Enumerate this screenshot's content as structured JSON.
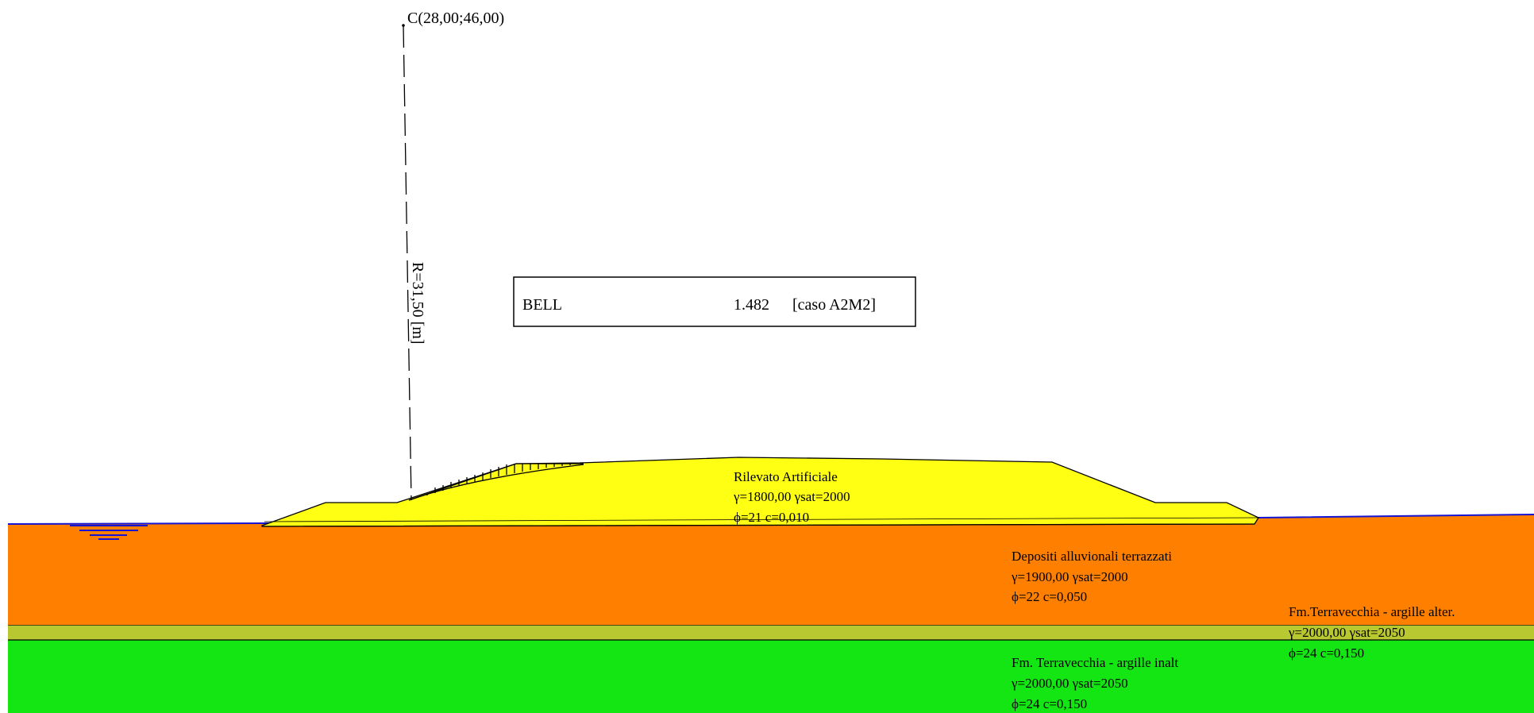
{
  "center_label": "C(28,00;46,00)",
  "radius_label": "R=31,50 [m]",
  "result_box": {
    "method": "BELL",
    "factor": "1.482",
    "case": "[caso A2M2]"
  },
  "layers": [
    {
      "name": "Rilevato Artificiale",
      "weights": "γ=1800,00  γsat=2000",
      "strength": "ϕ=21  c=0,010",
      "color": "#ffff14"
    },
    {
      "name": "Depositi alluvionali terrazzati",
      "weights": "γ=1900,00  γsat=2000",
      "strength": "ϕ=22  c=0,050",
      "color": "#ff8000"
    },
    {
      "name": "Fm.Terravecchia - argille alter.",
      "weights": "γ=2000,00  γsat=2050",
      "strength": "ϕ=24  c=0,150",
      "color": "#b8c830"
    },
    {
      "name": "Fm. Terravecchia - argille inalt",
      "weights": "γ=2000,00  γsat=2050",
      "strength": "ϕ=24  c=0,150",
      "color": "#14e614"
    }
  ],
  "colors": {
    "water_line": "#1414d2",
    "outline": "#000000"
  }
}
